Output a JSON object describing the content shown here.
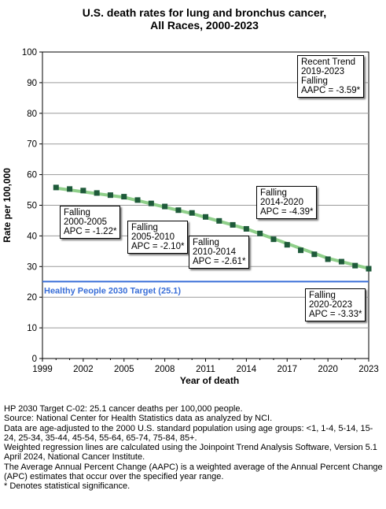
{
  "title": [
    "U.S. death rates for lung and bronchus cancer,",
    "All Races,  2000-2023"
  ],
  "chart_data": {
    "type": "line",
    "title": "U.S. death rates for lung and bronchus cancer, All Races,  2000-2023",
    "xlabel": "Year of death",
    "ylabel": "Rate per 100,000",
    "xlim": [
      1999,
      2023
    ],
    "ylim": [
      0,
      100
    ],
    "x_ticks": [
      1999,
      2002,
      2005,
      2008,
      2011,
      2014,
      2017,
      2020,
      2023
    ],
    "y_ticks": [
      0,
      10,
      20,
      30,
      40,
      50,
      60,
      70,
      80,
      90,
      100
    ],
    "grid": true,
    "series": [
      {
        "type": "scatter",
        "color": "#1e5a3a",
        "x": [
          2000,
          2001,
          2002,
          2003,
          2004,
          2005,
          2006,
          2007,
          2008,
          2009,
          2010,
          2011,
          2012,
          2013,
          2014,
          2015,
          2016,
          2017,
          2018,
          2019,
          2020,
          2021,
          2022,
          2023
        ],
        "y": [
          55.8,
          55.3,
          54.8,
          54.0,
          53.3,
          52.8,
          51.7,
          50.6,
          49.6,
          48.4,
          47.5,
          46.2,
          44.9,
          43.6,
          42.3,
          40.8,
          38.9,
          37.1,
          35.3,
          34.0,
          32.4,
          31.6,
          30.3,
          29.3
        ]
      },
      {
        "type": "line",
        "color": "#8fcf8a",
        "x": [
          2000,
          2005,
          2010,
          2014,
          2020,
          2023
        ],
        "y": [
          55.6,
          52.6,
          47.3,
          42.3,
          32.7,
          29.4
        ]
      }
    ],
    "reference_line": {
      "y": 25.1,
      "label": "Healthy People 2030 Target (25.1)",
      "color": "#3a6fd8"
    },
    "annotations": [
      {
        "lines": [
          "Falling",
          "2000-2005",
          "APC = -1.22*"
        ]
      },
      {
        "lines": [
          "Falling",
          "2005-2010",
          "APC = -2.10*"
        ]
      },
      {
        "lines": [
          "Falling",
          "2010-2014",
          "APC = -2.61*"
        ]
      },
      {
        "lines": [
          "Falling",
          "2014-2020",
          "APC = -4.39*"
        ]
      },
      {
        "lines": [
          "Falling",
          "2020-2023",
          "APC = -3.33*"
        ]
      },
      {
        "lines": [
          "Recent Trend",
          "2019-2023",
          "Falling",
          "AAPC = -3.59*"
        ]
      }
    ]
  },
  "footnotes": [
    "HP 2030 Target C-02: 25.1 cancer deaths per 100,000 people.",
    "Source: National Center for Health Statistics data as analyzed by NCI.",
    "Data are age-adjusted to the 2000 U.S. standard population using age groups: <1, 1-4, 5-14, 15-24, 25-34, 35-44, 45-54, 55-64, 65-74, 75-84, 85+.",
    "Weighted regression lines are calculated using the Joinpoint Trend Analysis Software, Version 5.1 April 2024, National Cancer Institute.",
    "The Average Annual Percent Change (AAPC) is a weighted average of the Annual Percent Change (APC) estimates that occur over the specified year range.",
    "* Denotes statistical significance."
  ]
}
